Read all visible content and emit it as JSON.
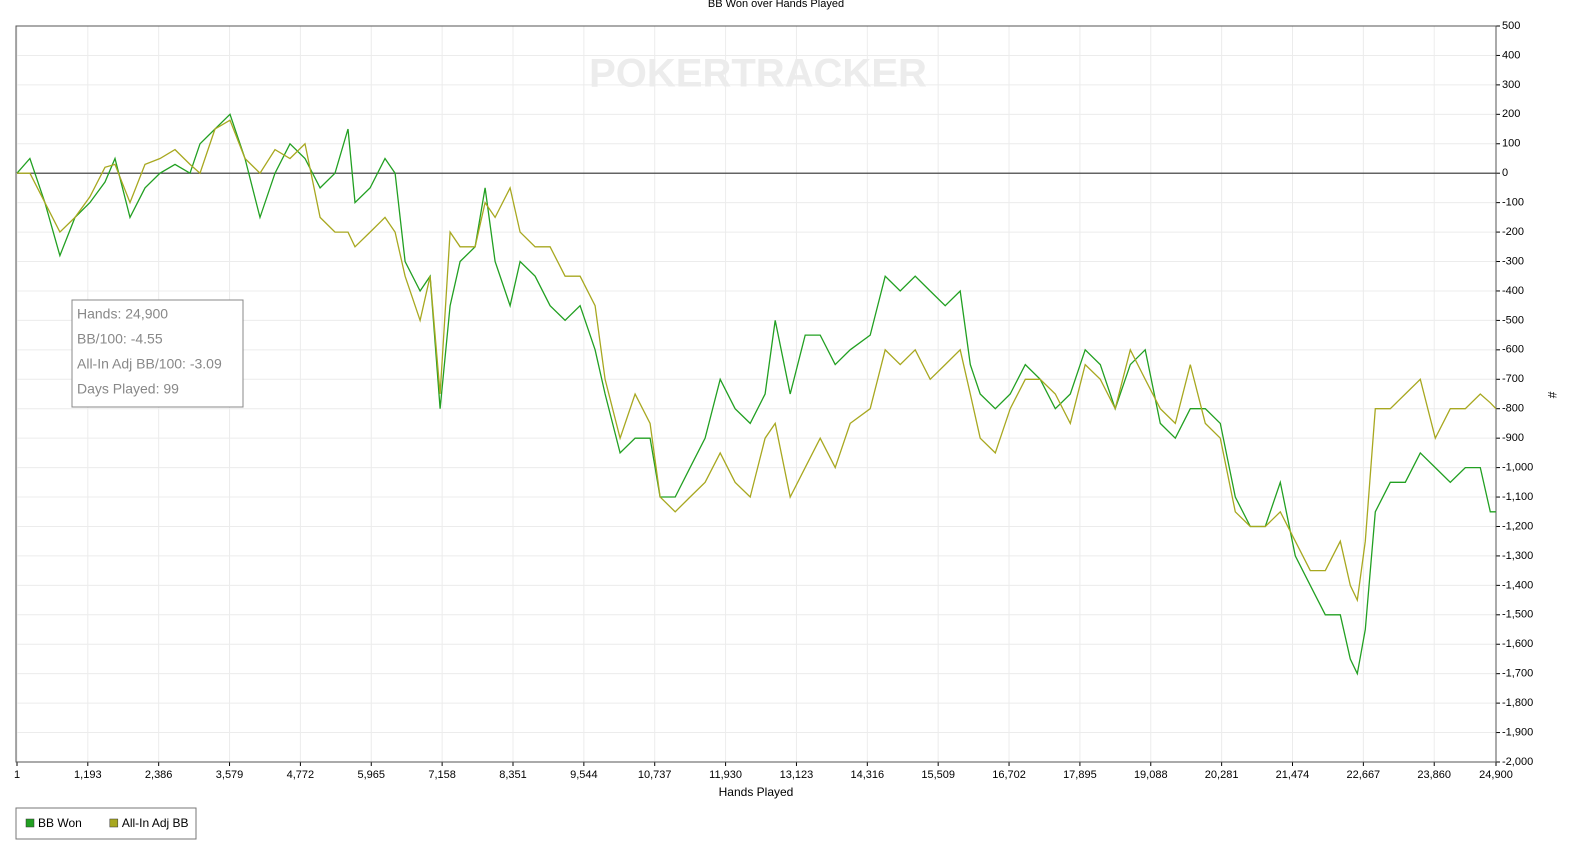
{
  "chart_data": {
    "type": "line",
    "title": "BB Won over Hands Played",
    "watermark": "POKERTRACKER",
    "xlabel": "Hands Played",
    "ylabel": "#",
    "xlim": [
      1,
      24900
    ],
    "ylim": [
      -2000,
      500
    ],
    "xticks": [
      1,
      {
        "value": 1193,
        "label": "1,193"
      },
      {
        "value": 2386,
        "label": "2,386"
      },
      {
        "value": 3579,
        "label": "3,579"
      },
      {
        "value": 4772,
        "label": "4,772"
      },
      {
        "value": 5965,
        "label": "5,965"
      },
      {
        "value": 7158,
        "label": "7,158"
      },
      {
        "value": 8351,
        "label": "8,351"
      },
      {
        "value": 9544,
        "label": "9,544"
      },
      {
        "value": 10737,
        "label": "10,737"
      },
      {
        "value": 11930,
        "label": "11,930"
      },
      {
        "value": 13123,
        "label": "13,123"
      },
      {
        "value": 14316,
        "label": "14,316"
      },
      {
        "value": 15509,
        "label": "15,509"
      },
      {
        "value": 16702,
        "label": "16,702"
      },
      {
        "value": 17895,
        "label": "17,895"
      },
      {
        "value": 19088,
        "label": "19,088"
      },
      {
        "value": 20281,
        "label": "20,281"
      },
      {
        "value": 21474,
        "label": "21,474"
      },
      {
        "value": 22667,
        "label": "22,667"
      },
      {
        "value": 23860,
        "label": "23,860"
      },
      {
        "value": 24900,
        "label": "24,900"
      }
    ],
    "yticks": [
      500,
      400,
      300,
      200,
      100,
      0,
      -100,
      -200,
      -300,
      -400,
      -500,
      -600,
      -700,
      -800,
      -900,
      {
        "value": -1000,
        "label": "-1,000"
      },
      {
        "value": -1100,
        "label": "-1,100"
      },
      {
        "value": -1200,
        "label": "-1,200"
      },
      {
        "value": -1300,
        "label": "-1,300"
      },
      {
        "value": -1400,
        "label": "-1,400"
      },
      {
        "value": -1500,
        "label": "-1,500"
      },
      {
        "value": -1600,
        "label": "-1,600"
      },
      {
        "value": -1700,
        "label": "-1,700"
      },
      {
        "value": -1800,
        "label": "-1,800"
      },
      {
        "value": -1900,
        "label": "-1,900"
      },
      {
        "value": -2000,
        "label": "-2,000"
      }
    ],
    "grid": true,
    "legend": "bottom-left",
    "tooltip": [
      "Hands: 24,900",
      "BB/100: -4.55",
      "All-In Adj BB/100: -3.09",
      "Days Played: 99"
    ],
    "x": [
      1,
      219,
      471,
      724,
      977,
      1229,
      1482,
      1650,
      1903,
      2156,
      2408,
      2661,
      2913,
      3082,
      3334,
      3587,
      3840,
      4092,
      4345,
      4597,
      4850,
      5103,
      5355,
      5574,
      5692,
      5945,
      6197,
      6366,
      6534,
      6787,
      6955,
      7124,
      7292,
      7461,
      7713,
      7881,
      8050,
      8303,
      8471,
      8724,
      8976,
      9229,
      9481,
      9734,
      9902,
      10155,
      10407,
      10660,
      10828,
      11081,
      11333,
      11586,
      11839,
      12091,
      12344,
      12596,
      12765,
      13017,
      13270,
      13523,
      13775,
      14028,
      14364,
      14617,
      14870,
      15122,
      15375,
      15628,
      15880,
      16049,
      16217,
      16470,
      16722,
      16975,
      17227,
      17480,
      17733,
      17985,
      18238,
      18490,
      18743,
      18995,
      19248,
      19501,
      19753,
      20006,
      20258,
      20511,
      20764,
      21016,
      21269,
      21521,
      21774,
      22026,
      22279,
      22447,
      22565,
      22700,
      22868,
      23120,
      23373,
      23626,
      23878,
      24131,
      24383,
      24636,
      24804,
      24900
    ],
    "series": [
      {
        "name": "BB Won",
        "color": "#22a022",
        "values": [
          0,
          50,
          -100,
          -280,
          -150,
          -100,
          -30,
          50,
          -150,
          -50,
          0,
          30,
          0,
          100,
          150,
          200,
          50,
          -150,
          0,
          100,
          50,
          -50,
          0,
          150,
          -100,
          -50,
          50,
          0,
          -300,
          -400,
          -350,
          -800,
          -450,
          -300,
          -250,
          -50,
          -300,
          -450,
          -300,
          -350,
          -450,
          -500,
          -450,
          -600,
          -750,
          -950,
          -900,
          -900,
          -1100,
          -1100,
          -1000,
          -900,
          -700,
          -800,
          -850,
          -750,
          -500,
          -750,
          -550,
          -550,
          -650,
          -600,
          -550,
          -350,
          -400,
          -350,
          -400,
          -450,
          -400,
          -650,
          -750,
          -800,
          -750,
          -650,
          -700,
          -800,
          -750,
          -600,
          -650,
          -800,
          -650,
          -600,
          -850,
          -900,
          -800,
          -800,
          -850,
          -1100,
          -1200,
          -1200,
          -1050,
          -1300,
          -1400,
          -1500,
          -1500,
          -1650,
          -1700,
          -1550,
          -1150,
          -1050,
          -1050,
          -950,
          -1000,
          -1050,
          -1000,
          -1000,
          -1150,
          -1150
        ]
      },
      {
        "name": "All-In Adj BB",
        "color": "#a8a820",
        "values": [
          0,
          0,
          -100,
          -200,
          -150,
          -80,
          20,
          30,
          -100,
          30,
          50,
          80,
          30,
          0,
          150,
          180,
          50,
          0,
          80,
          50,
          100,
          -150,
          -200,
          -200,
          -250,
          -200,
          -150,
          -200,
          -350,
          -500,
          -350,
          -750,
          -200,
          -250,
          -250,
          -100,
          -150,
          -50,
          -200,
          -250,
          -250,
          -350,
          -350,
          -450,
          -700,
          -900,
          -750,
          -850,
          -1100,
          -1150,
          -1100,
          -1050,
          -950,
          -1050,
          -1100,
          -900,
          -850,
          -1100,
          -1000,
          -900,
          -1000,
          -850,
          -800,
          -600,
          -650,
          -600,
          -700,
          -650,
          -600,
          -750,
          -900,
          -950,
          -800,
          -700,
          -700,
          -750,
          -850,
          -650,
          -700,
          -800,
          -600,
          -700,
          -800,
          -850,
          -650,
          -850,
          -900,
          -1150,
          -1200,
          -1200,
          -1150,
          -1250,
          -1350,
          -1350,
          -1250,
          -1400,
          -1450,
          -1250,
          -800,
          -800,
          -750,
          -700,
          -900,
          -800,
          -800,
          -750,
          -780,
          -800
        ]
      }
    ]
  }
}
